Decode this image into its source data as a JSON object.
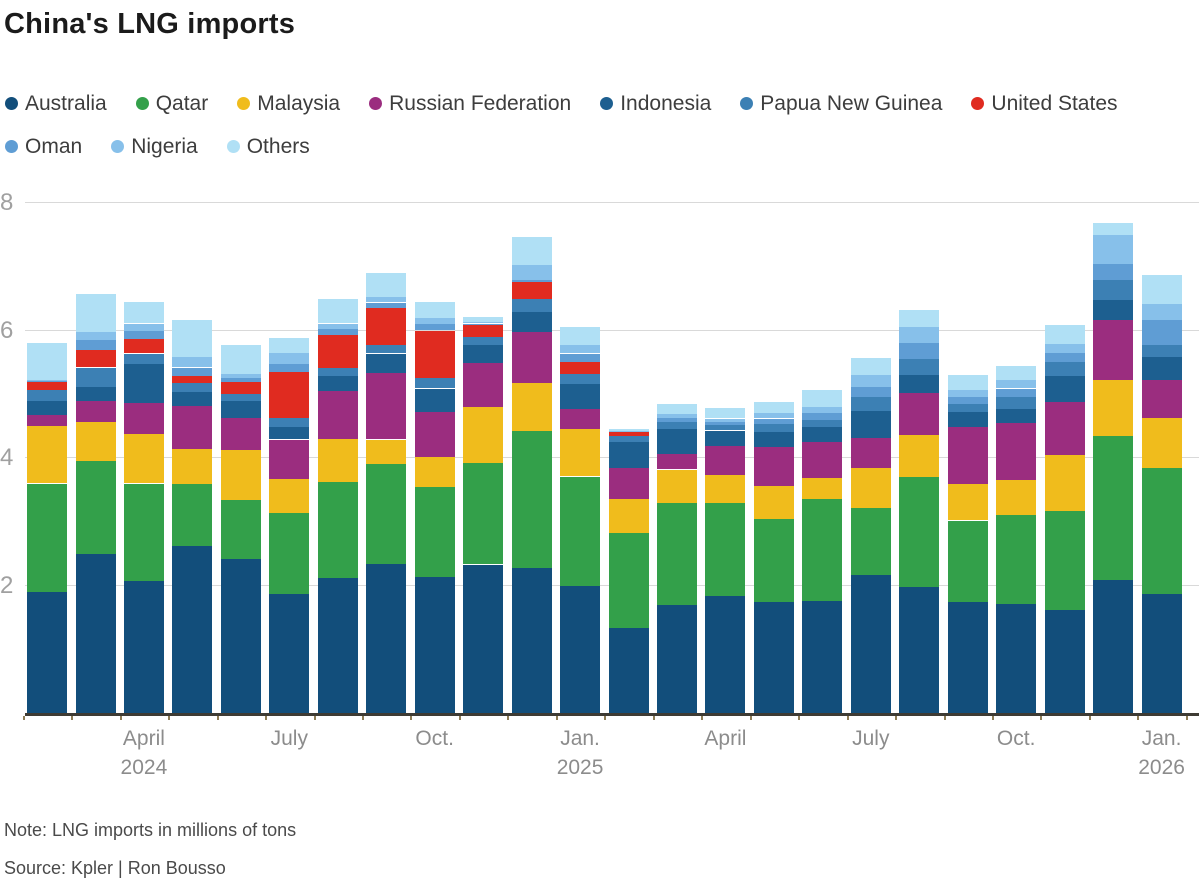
{
  "title": "China's LNG imports",
  "note": "Note: LNG imports in millions of tons",
  "source": "Source: Kpler | Ron Bousso",
  "colors": {
    "Australia": "#124e7b",
    "Qatar": "#33a04a",
    "Malaysia": "#f0bc1c",
    "Russian Federation": "#9b2d7f",
    "Indonesia": "#1d5f90",
    "Papua New Guinea": "#3c80b4",
    "United States": "#e02b20",
    "Oman": "#5f9dd4",
    "Nigeria": "#87c0ea",
    "Others": "#b0e0f5"
  },
  "legend": {
    "rows": [
      [
        "Australia",
        "Qatar",
        "Malaysia",
        "Russian Federation",
        "Indonesia",
        "Papua New Guinea",
        "United States"
      ],
      [
        "Oman",
        "Nigeria",
        "Others"
      ]
    ]
  },
  "y_axis": {
    "ticks": [
      8,
      6,
      4,
      2
    ]
  },
  "chart_data": {
    "type": "bar",
    "stacked": true,
    "title": "China's LNG imports",
    "unit": "millions of tons",
    "ylim": [
      0,
      8
    ],
    "grid": "horizontal",
    "legend_position": "top",
    "months": [
      "Feb 2024",
      "Mar 2024",
      "Apr 2024",
      "May 2024",
      "Jun 2024",
      "Jul 2024",
      "Aug 2024",
      "Sep 2024",
      "Oct 2024",
      "Nov 2024",
      "Dec 2024",
      "Jan 2025",
      "Feb 2025",
      "Mar 2025",
      "Apr 2025",
      "May 2025",
      "Jun 2025",
      "Jul 2025",
      "Aug 2025",
      "Sep 2025",
      "Oct 2025",
      "Nov 2025",
      "Dec 2025",
      "Jan 2026"
    ],
    "x_tick_labels": [
      {
        "index": 2,
        "label": "April",
        "year": "2024"
      },
      {
        "index": 5,
        "label": "July"
      },
      {
        "index": 8,
        "label": "Oct."
      },
      {
        "index": 11,
        "label": "Jan.",
        "year": "2025"
      },
      {
        "index": 14,
        "label": "April"
      },
      {
        "index": 17,
        "label": "July"
      },
      {
        "index": 20,
        "label": "Oct."
      },
      {
        "index": 23,
        "label": "Jan.",
        "year": "2026"
      }
    ],
    "series": [
      {
        "name": "Australia",
        "values": [
          1.9,
          2.5,
          2.07,
          2.62,
          2.42,
          1.86,
          2.12,
          2.34,
          2.13,
          2.33,
          2.27,
          1.99,
          1.33,
          1.7,
          1.84,
          1.74,
          1.76,
          2.16,
          1.97,
          1.74,
          1.71,
          1.62,
          2.09,
          1.87
        ]
      },
      {
        "name": "Qatar",
        "values": [
          1.7,
          1.46,
          1.53,
          0.97,
          0.92,
          1.28,
          1.51,
          1.56,
          1.42,
          1.59,
          2.16,
          1.72,
          1.49,
          1.6,
          1.45,
          1.3,
          1.59,
          1.06,
          1.73,
          1.28,
          1.39,
          1.55,
          2.25,
          1.97
        ]
      },
      {
        "name": "Malaysia",
        "values": [
          0.9,
          0.61,
          0.77,
          0.55,
          0.78,
          0.53,
          0.67,
          0.39,
          0.46,
          0.88,
          0.74,
          0.75,
          0.54,
          0.52,
          0.45,
          0.52,
          0.33,
          0.62,
          0.66,
          0.57,
          0.55,
          0.88,
          0.89,
          0.79
        ]
      },
      {
        "name": "Russian Federation",
        "values": [
          0.18,
          0.33,
          0.49,
          0.67,
          0.51,
          0.62,
          0.75,
          1.04,
          0.71,
          0.69,
          0.81,
          0.31,
          0.49,
          0.24,
          0.45,
          0.62,
          0.57,
          0.47,
          0.66,
          0.89,
          0.9,
          0.83,
          0.93,
          0.59
        ]
      },
      {
        "name": "Indonesia",
        "values": [
          0.22,
          0.22,
          0.61,
          0.22,
          0.27,
          0.19,
          0.24,
          0.31,
          0.37,
          0.28,
          0.31,
          0.39,
          0.4,
          0.4,
          0.24,
          0.23,
          0.23,
          0.43,
          0.28,
          0.24,
          0.22,
          0.41,
          0.32,
          0.37
        ]
      },
      {
        "name": "Papua New Guinea",
        "values": [
          0.17,
          0.3,
          0.17,
          0.14,
          0.11,
          0.15,
          0.13,
          0.13,
          0.16,
          0.13,
          0.21,
          0.16,
          0.09,
          0.1,
          0.09,
          0.13,
          0.11,
          0.21,
          0.25,
          0.12,
          0.19,
          0.21,
          0.31,
          0.18
        ]
      },
      {
        "name": "United States",
        "values": [
          0.12,
          0.28,
          0.23,
          0.12,
          0.18,
          0.72,
          0.51,
          0.58,
          0.75,
          0.18,
          0.26,
          0.18,
          0.07,
          0.0,
          0.0,
          0.0,
          0.0,
          0.0,
          0.0,
          0.0,
          0.0,
          0.0,
          0.0,
          0.0
        ]
      },
      {
        "name": "Oman",
        "values": [
          0.02,
          0.15,
          0.12,
          0.13,
          0.06,
          0.13,
          0.09,
          0.09,
          0.1,
          0.03,
          0.03,
          0.14,
          0.01,
          0.07,
          0.05,
          0.08,
          0.11,
          0.17,
          0.25,
          0.11,
          0.13,
          0.15,
          0.26,
          0.39
        ]
      },
      {
        "name": "Nigeria",
        "values": [
          0.02,
          0.12,
          0.12,
          0.16,
          0.07,
          0.16,
          0.09,
          0.09,
          0.09,
          0.02,
          0.24,
          0.13,
          0.01,
          0.06,
          0.05,
          0.08,
          0.1,
          0.18,
          0.25,
          0.11,
          0.13,
          0.14,
          0.45,
          0.26
        ]
      },
      {
        "name": "Others",
        "values": [
          0.57,
          0.61,
          0.33,
          0.59,
          0.45,
          0.25,
          0.38,
          0.37,
          0.26,
          0.08,
          0.44,
          0.29,
          0.02,
          0.16,
          0.16,
          0.18,
          0.26,
          0.27,
          0.28,
          0.25,
          0.23,
          0.29,
          0.19,
          0.45
        ]
      }
    ]
  }
}
